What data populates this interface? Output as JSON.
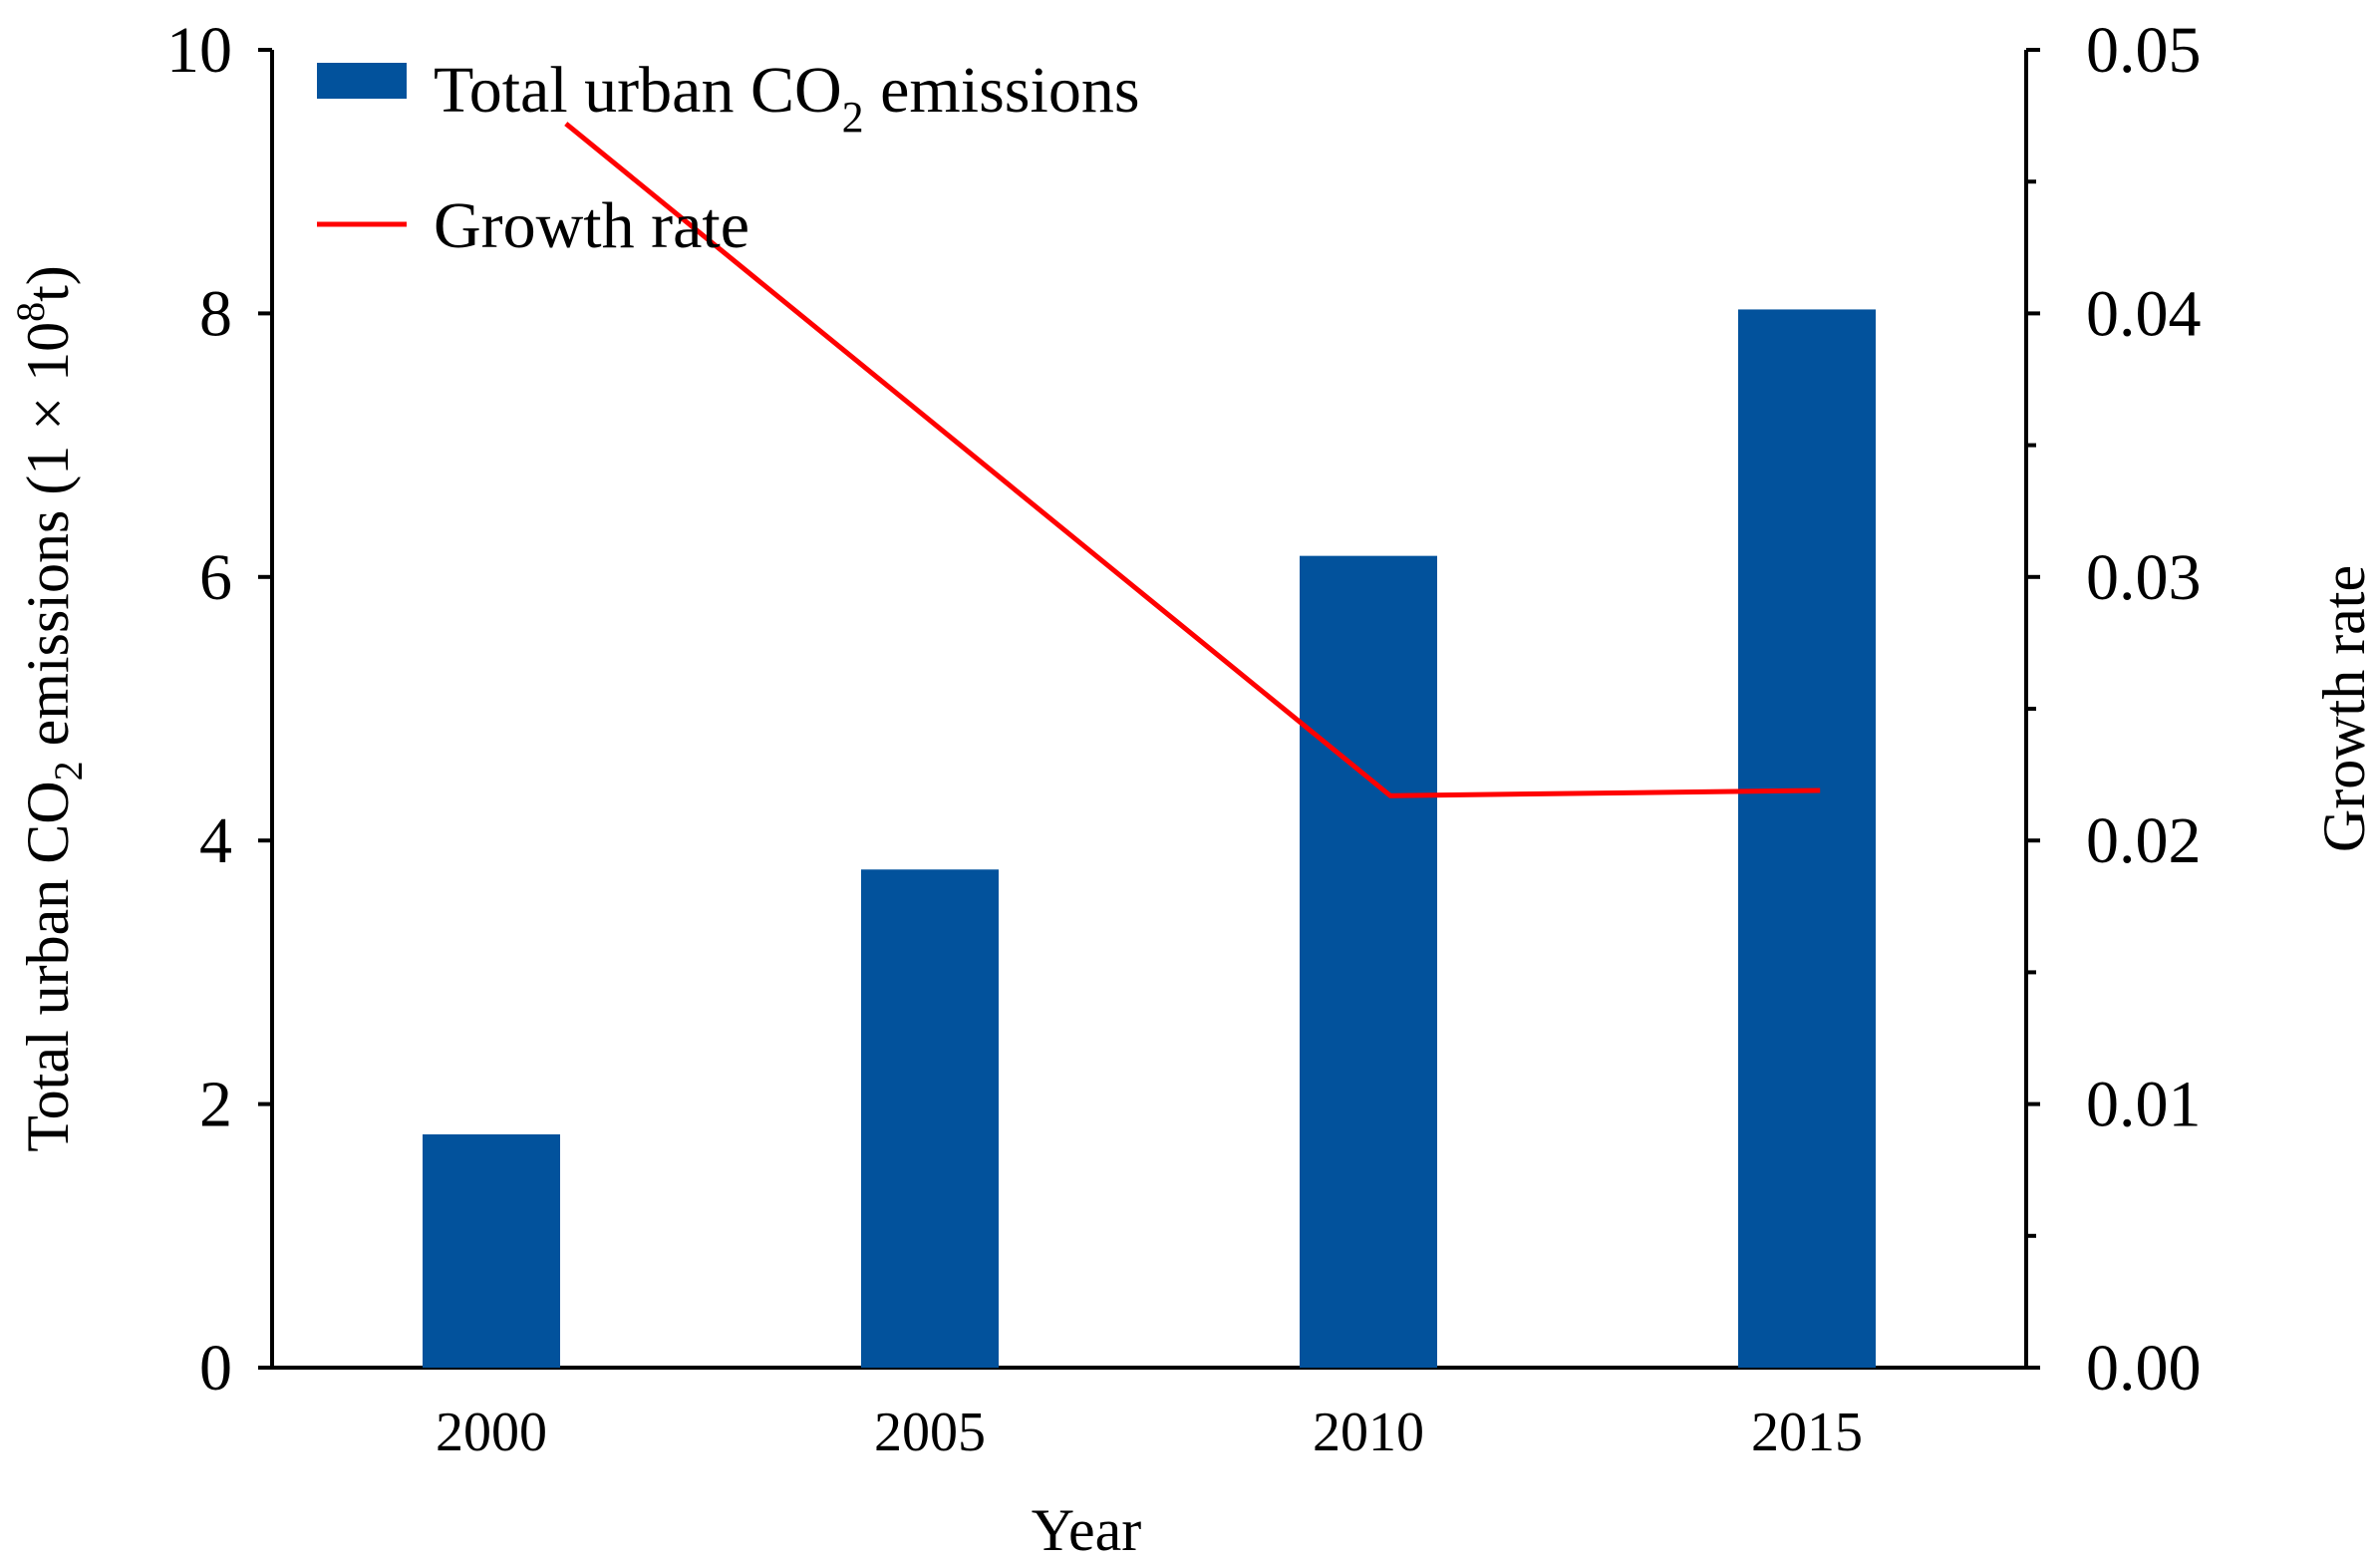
{
  "chart_data": {
    "type": "bar+line",
    "categories": [
      "2000",
      "2005",
      "2010",
      "2015"
    ],
    "series": [
      {
        "name": "Total urban CO2 emissions",
        "legend_main": "Total urban CO",
        "legend_sub": "2",
        "legend_tail": " emissions",
        "type": "bar",
        "axis": "left",
        "color": "#02529c",
        "values": [
          1.77,
          3.78,
          6.16,
          8.03
        ]
      },
      {
        "name": "Growth rate",
        "legend_label": "Growth rate",
        "type": "line",
        "axis": "right",
        "color": "#ff0000",
        "points": [
          {
            "x": 2000.85,
            "y": 0.0472
          },
          {
            "x": 2010.25,
            "y": 0.0217
          },
          {
            "x": 2015.15,
            "y": 0.0219
          }
        ]
      }
    ],
    "x_axis": {
      "title": "Year",
      "range": [
        1997.5,
        2017.5
      ]
    },
    "y_left": {
      "range": [
        0,
        10
      ],
      "ticks": [
        "0",
        "2",
        "4",
        "6",
        "8",
        "10"
      ],
      "tick_values": [
        0,
        2,
        4,
        6,
        8,
        10
      ],
      "title_main": "Total urban CO",
      "title_sub": "2",
      "title_tail": " emissions (1 × 10",
      "title_sup": "8",
      "title_end": "t)"
    },
    "y_right": {
      "range": [
        0,
        0.05
      ],
      "ticks": [
        "0.00",
        "0.01",
        "0.02",
        "0.03",
        "0.04",
        "0.05"
      ],
      "tick_values": [
        0,
        0.01,
        0.02,
        0.03,
        0.04,
        0.05
      ],
      "title": "Growth rate"
    },
    "legend_position": "top-left",
    "grid": false
  }
}
